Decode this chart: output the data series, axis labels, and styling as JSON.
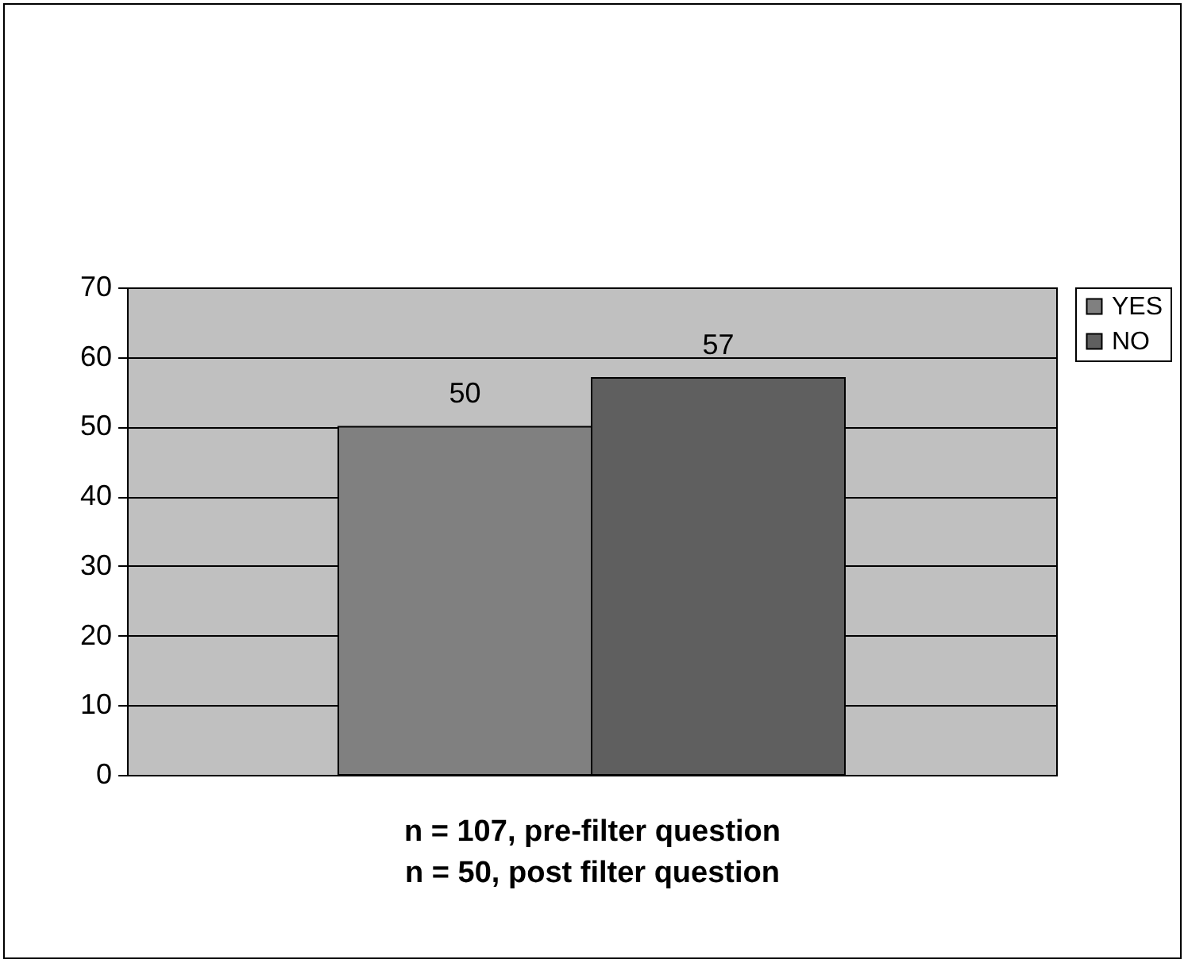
{
  "chart_data": {
    "type": "bar",
    "categories": [
      null
    ],
    "series": [
      {
        "name": "YES",
        "color": "#808080",
        "values": [
          50
        ]
      },
      {
        "name": "NO",
        "color": "#5f5f5f",
        "values": [
          57
        ]
      }
    ],
    "xlabel": "n = 107, pre-filter question\nn = 50, post filter question",
    "ylim": [
      0,
      70
    ],
    "yticks": [
      0,
      10,
      20,
      30,
      40,
      50,
      60,
      70
    ],
    "grid": "y",
    "legend": "right",
    "data_labels": true
  }
}
